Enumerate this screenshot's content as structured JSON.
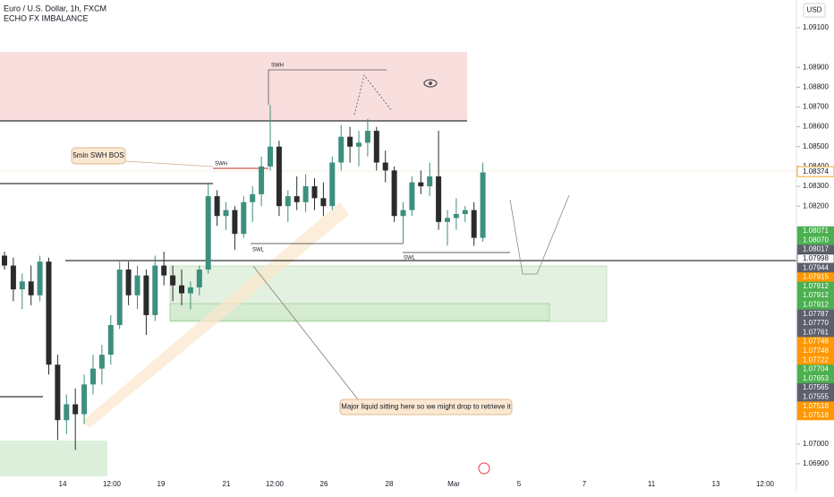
{
  "chart_data": {
    "type": "candlestick",
    "title": "Euro / U.S. Dollar, 1h, FXCM",
    "subtitle": "ECHO FX IMBALANCE",
    "currency": "USD",
    "annotations": {
      "bos": "5min SWH BOS",
      "swh1": "SWH",
      "swh2": "SWH",
      "swl1": "SWL",
      "swl2": "SWL",
      "note": "Major liquid sitting here so we might drop to retrieve it"
    },
    "x_labels": [
      "14",
      "12:00",
      "19",
      "21",
      "12:00",
      "26",
      "28",
      "Mar",
      "5",
      "7",
      "11",
      "13",
      "12:00"
    ],
    "up_color": "#3d8f7e",
    "down_color": "#2b2b2b",
    "open": [
      1.0795,
      1.079,
      1.0778,
      1.0782,
      1.0775,
      1.0792,
      1.074,
      1.0712,
      1.072,
      1.0715,
      1.073,
      1.0738,
      1.0745,
      1.076,
      1.0788,
      1.0775,
      1.0785,
      1.0765,
      1.079,
      1.0785,
      1.078,
      1.0776,
      1.0779,
      1.0788,
      1.0825,
      1.0815,
      1.0818,
      1.0806,
      1.0822,
      1.0826,
      1.084,
      1.085,
      1.082,
      1.0825,
      1.0822,
      1.083,
      1.0824,
      1.082,
      1.0842,
      1.0855,
      1.085,
      1.0852,
      1.0858,
      1.0842,
      1.0838,
      1.0815,
      1.0818,
      1.0832,
      1.083,
      1.0835,
      1.0812,
      1.0814,
      1.0816,
      1.0818,
      1.0804
    ],
    "high": [
      1.0797,
      1.0794,
      1.0786,
      1.079,
      1.0795,
      1.0794,
      1.0745,
      1.0725,
      1.0728,
      1.0735,
      1.0745,
      1.075,
      1.0765,
      1.0792,
      1.0792,
      1.079,
      1.0788,
      1.0795,
      1.0797,
      1.079,
      1.0788,
      1.0782,
      1.079,
      1.0832,
      1.0828,
      1.0822,
      1.082,
      1.0825,
      1.083,
      1.0845,
      1.0871,
      1.0853,
      1.0828,
      1.0835,
      1.0836,
      1.0834,
      1.0832,
      1.0845,
      1.0861,
      1.086,
      1.0858,
      1.0864,
      1.086,
      1.0848,
      1.084,
      1.0822,
      1.0835,
      1.0838,
      1.0842,
      1.0858,
      1.0818,
      1.0824,
      1.082,
      1.0822,
      1.0842
    ],
    "low": [
      1.0788,
      1.0772,
      1.0768,
      1.077,
      1.0772,
      1.0735,
      1.0702,
      1.0705,
      1.0697,
      1.071,
      1.0725,
      1.073,
      1.074,
      1.0758,
      1.077,
      1.0768,
      1.0755,
      1.0762,
      1.078,
      1.0772,
      1.077,
      1.0768,
      1.0775,
      1.0786,
      1.081,
      1.0808,
      1.0798,
      1.0804,
      1.0812,
      1.082,
      1.0838,
      1.0815,
      1.0812,
      1.0818,
      1.0817,
      1.0818,
      1.0815,
      1.0818,
      1.0838,
      1.0842,
      1.084,
      1.0845,
      1.0838,
      1.0832,
      1.0812,
      1.0801,
      1.0815,
      1.0826,
      1.0825,
      1.0808,
      1.08,
      1.0808,
      1.0812,
      1.08,
      1.0802
    ],
    "close": [
      1.079,
      1.0778,
      1.0782,
      1.0775,
      1.0792,
      1.074,
      1.0712,
      1.072,
      1.0715,
      1.073,
      1.0738,
      1.0745,
      1.076,
      1.0788,
      1.0775,
      1.0785,
      1.0765,
      1.079,
      1.0785,
      1.078,
      1.0776,
      1.0779,
      1.0788,
      1.0825,
      1.0815,
      1.0818,
      1.0806,
      1.0822,
      1.0826,
      1.084,
      1.085,
      1.082,
      1.0825,
      1.0822,
      1.083,
      1.0824,
      1.082,
      1.0842,
      1.0855,
      1.085,
      1.0852,
      1.0858,
      1.0842,
      1.0838,
      1.0815,
      1.0818,
      1.0832,
      1.083,
      1.0835,
      1.0812,
      1.0814,
      1.0816,
      1.0818,
      1.0804,
      1.0837
    ],
    "ylim": [
      1.068,
      1.0924
    ],
    "yticks": [
      {
        "value": 1.091,
        "label": "1.09100"
      },
      {
        "value": 1.089,
        "label": "1.08900"
      },
      {
        "value": 1.088,
        "label": "1.08800"
      },
      {
        "value": 1.087,
        "label": "1.08700"
      },
      {
        "value": 1.086,
        "label": "1.08600"
      },
      {
        "value": 1.085,
        "label": "1.08500"
      },
      {
        "value": 1.084,
        "label": "1.08400"
      },
      {
        "value": 1.083,
        "label": "1.08300"
      },
      {
        "value": 1.082,
        "label": "1.08200"
      },
      {
        "value": 1.07,
        "label": "1.07000"
      },
      {
        "value": 1.069,
        "label": "1.06900"
      }
    ],
    "last_price": {
      "value": 1.08374,
      "label": "1.08374"
    },
    "price_tags": [
      {
        "label": "1.08071",
        "color": "#4caf50"
      },
      {
        "label": "1.08070",
        "color": "#4caf50"
      },
      {
        "label": "1.08017",
        "color": "#5d606b"
      },
      {
        "label": "1.07998",
        "color": "#ffffff"
      },
      {
        "label": "1.07944",
        "color": "#5d606b"
      },
      {
        "label": "1.07915",
        "color": "#ff9800"
      },
      {
        "label": "1.07912",
        "color": "#4caf50"
      },
      {
        "label": "1.07912",
        "color": "#4caf50"
      },
      {
        "label": "1.07912",
        "color": "#4caf50"
      },
      {
        "label": "1.07787",
        "color": "#5d606b"
      },
      {
        "label": "1.07770",
        "color": "#5d606b"
      },
      {
        "label": "1.07761",
        "color": "#5d606b"
      },
      {
        "label": "1.07748",
        "color": "#ff9800"
      },
      {
        "label": "1.07748",
        "color": "#ff9800"
      },
      {
        "label": "1.07722",
        "color": "#ff9800"
      },
      {
        "label": "1.07704",
        "color": "#4caf50"
      },
      {
        "label": "1.07653",
        "color": "#4caf50"
      },
      {
        "label": "1.07565",
        "color": "#5d606b"
      },
      {
        "label": "1.07555",
        "color": "#5d606b"
      },
      {
        "label": "1.07518",
        "color": "#ff9800"
      },
      {
        "label": "1.07518",
        "color": "#ff9800"
      }
    ]
  }
}
